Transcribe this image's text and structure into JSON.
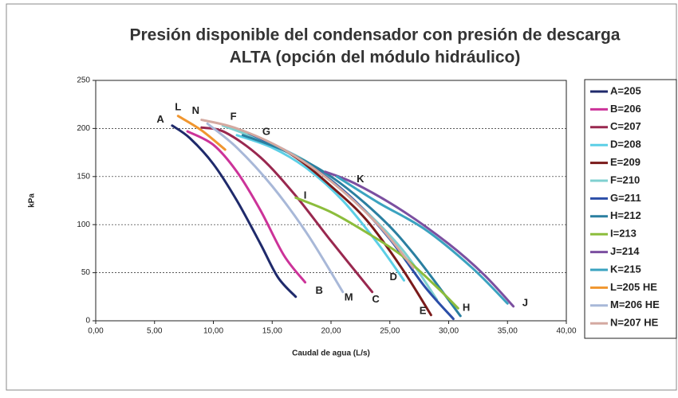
{
  "chart_data": {
    "type": "line",
    "title": "Presión disponible del condensador con presión de descarga",
    "subtitle": "ALTA (opción del módulo hidráulico)",
    "x_label": "Caudal de agua (L/s)",
    "y_label": "kPa",
    "xlim": [
      0,
      40
    ],
    "ylim": [
      0,
      250
    ],
    "xticks": [
      {
        "value": 0,
        "label": "0,00"
      },
      {
        "value": 5,
        "label": "5,00"
      },
      {
        "value": 10,
        "label": "10,00"
      },
      {
        "value": 15,
        "label": "15,00"
      },
      {
        "value": 20,
        "label": "20,00"
      },
      {
        "value": 25,
        "label": "25,00"
      },
      {
        "value": 30,
        "label": "30,00"
      },
      {
        "value": 35,
        "label": "35,00"
      },
      {
        "value": 40,
        "label": "40,00"
      }
    ],
    "yticks": [
      0,
      50,
      100,
      150,
      200,
      250
    ],
    "grid": true,
    "legend": "right",
    "series": [
      {
        "name": "A=205",
        "color": "#1f2a6b",
        "x": [
          6.5,
          8,
          10,
          12,
          14,
          15.5,
          17
        ],
        "values": [
          203,
          190,
          163,
          125,
          80,
          45,
          25
        ]
      },
      {
        "name": "B=206",
        "color": "#cc3399",
        "x": [
          7.8,
          10,
          12,
          14,
          16,
          17.8
        ],
        "values": [
          197,
          183,
          155,
          115,
          68,
          40
        ]
      },
      {
        "name": "C=207",
        "color": "#99284f",
        "x": [
          9,
          11,
          14,
          17,
          20,
          23.5
        ],
        "values": [
          201,
          196,
          170,
          130,
          83,
          30
        ]
      },
      {
        "name": "D=208",
        "color": "#5ccfe6",
        "x": [
          12,
          15,
          18,
          21,
          24,
          26.2
        ],
        "values": [
          193,
          180,
          158,
          125,
          80,
          42
        ]
      },
      {
        "name": "E=209",
        "color": "#7a1a1a",
        "x": [
          11,
          14,
          17,
          20,
          23,
          26,
          28.5
        ],
        "values": [
          203,
          190,
          170,
          140,
          105,
          55,
          6
        ]
      },
      {
        "name": "F=210",
        "color": "#7fd0d0",
        "x": [
          10.8,
          14,
          18,
          22,
          26,
          29
        ],
        "values": [
          203,
          188,
          165,
          125,
          75,
          22
        ]
      },
      {
        "name": "G=211",
        "color": "#2b4ea8",
        "x": [
          13,
          16,
          19,
          22,
          25,
          28,
          30.4
        ],
        "values": [
          195,
          178,
          155,
          125,
          85,
          35,
          2
        ]
      },
      {
        "name": "H=212",
        "color": "#2a7fa0",
        "x": [
          12.5,
          16,
          20,
          24,
          27,
          31
        ],
        "values": [
          193,
          177,
          150,
          110,
          70,
          5
        ]
      },
      {
        "name": "I=213",
        "color": "#8cbd3c",
        "x": [
          17,
          20,
          23,
          26,
          29,
          30.8
        ],
        "values": [
          128,
          113,
          92,
          68,
          35,
          13
        ]
      },
      {
        "name": "J=214",
        "color": "#7b4fa0",
        "x": [
          19.5,
          22,
          26,
          30,
          33,
          35.5
        ],
        "values": [
          155,
          143,
          115,
          80,
          48,
          15
        ]
      },
      {
        "name": "K=215",
        "color": "#3ba3c0",
        "x": [
          20.5,
          24,
          28,
          32,
          35
        ],
        "values": [
          150,
          123,
          95,
          55,
          18
        ]
      },
      {
        "name": "L=205 HE",
        "color": "#f0962f",
        "x": [
          7,
          9,
          11
        ],
        "values": [
          213,
          198,
          178
        ]
      },
      {
        "name": "M=206 HE",
        "color": "#a8b8d8",
        "x": [
          9.5,
          12,
          15,
          18,
          21
        ],
        "values": [
          205,
          180,
          140,
          90,
          30
        ]
      },
      {
        "name": "N=207 HE",
        "color": "#d4a9a0",
        "x": [
          9,
          12,
          16,
          20,
          24,
          27
        ],
        "values": [
          209,
          200,
          178,
          145,
          100,
          55
        ]
      }
    ],
    "annotations": [
      {
        "text": "A",
        "x": 5.5,
        "y": 209
      },
      {
        "text": "L",
        "x": 7,
        "y": 222
      },
      {
        "text": "N",
        "x": 8.5,
        "y": 218
      },
      {
        "text": "F",
        "x": 11.7,
        "y": 212
      },
      {
        "text": "G",
        "x": 14.5,
        "y": 196
      },
      {
        "text": "K",
        "x": 22.5,
        "y": 147
      },
      {
        "text": "I",
        "x": 17.8,
        "y": 130
      },
      {
        "text": "D",
        "x": 25.3,
        "y": 45
      },
      {
        "text": "B",
        "x": 19,
        "y": 31
      },
      {
        "text": "M",
        "x": 21.5,
        "y": 24
      },
      {
        "text": "C",
        "x": 23.8,
        "y": 22
      },
      {
        "text": "E",
        "x": 27.8,
        "y": 10
      },
      {
        "text": "H",
        "x": 31.5,
        "y": 13
      },
      {
        "text": "J",
        "x": 36.5,
        "y": 18
      }
    ]
  }
}
